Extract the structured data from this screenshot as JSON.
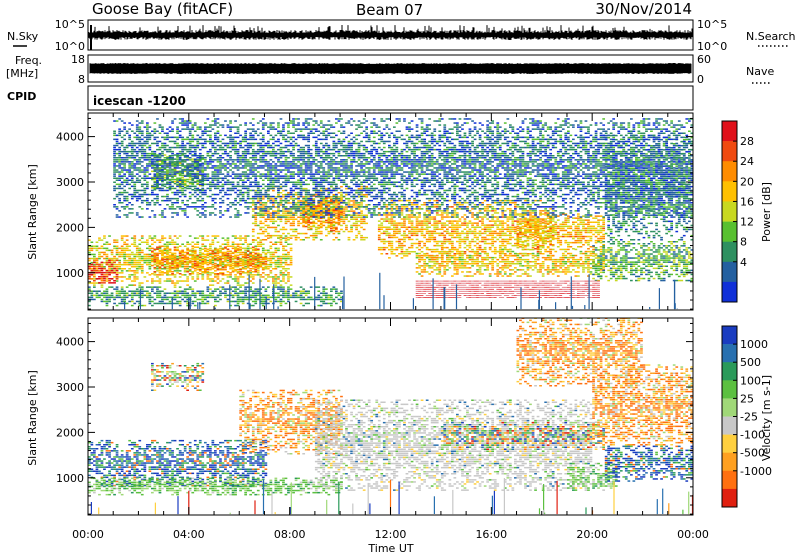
{
  "header": {
    "station": "Goose Bay (fitACF)",
    "beam": "Beam 07",
    "date": "30/Nov/2014"
  },
  "summary_panels": {
    "nsky": {
      "label": "N.Sky",
      "ticks": [
        "10^5",
        "10^0"
      ]
    },
    "nsearch": {
      "label": "N.Search",
      "ticks": [
        "10^5",
        "10^0"
      ]
    },
    "freq": {
      "label_line1": "Freq.",
      "label_line2": "[MHz]",
      "ticks": [
        "18",
        "8"
      ]
    },
    "nave": {
      "label": "Nave",
      "ticks": [
        "60",
        "0"
      ]
    },
    "cpid": {
      "label": "CPID",
      "value": "icescan -1200"
    }
  },
  "chart_data": [
    {
      "type": "heatmap",
      "name": "power",
      "ylabel": "Slant Range [km]",
      "xlabel": "",
      "x_ticks": [
        "00:00",
        "04:00",
        "08:00",
        "12:00",
        "16:00",
        "20:00",
        "00:00"
      ],
      "x_range_hours": [
        0,
        24
      ],
      "y_ticks": [
        1000,
        2000,
        3000,
        4000
      ],
      "ylim": [
        180,
        4520
      ],
      "colorbar": {
        "label": "Power [dB]",
        "ticks": [
          "28",
          "24",
          "20",
          "16",
          "12",
          "8",
          "4"
        ],
        "colors": [
          "#e0101a",
          "#f04a10",
          "#ff8c00",
          "#ffc000",
          "#c8d820",
          "#58c030",
          "#2e9060",
          "#2460a0",
          "#1030d8"
        ]
      },
      "regions": [
        {
          "t": [
            0,
            8
          ],
          "r": [
            700,
            1800
          ],
          "level": 0.55
        },
        {
          "t": [
            0,
            1.2
          ],
          "r": [
            750,
            1250
          ],
          "level": 0.9
        },
        {
          "t": [
            2.5,
            7
          ],
          "r": [
            950,
            1550
          ],
          "level": 0.7
        },
        {
          "t": [
            6.5,
            11
          ],
          "r": [
            1700,
            2900
          ],
          "level": 0.6
        },
        {
          "t": [
            8.5,
            10
          ],
          "r": [
            1900,
            2700
          ],
          "level": 0.7
        },
        {
          "t": [
            11.5,
            18.5
          ],
          "r": [
            1300,
            2600
          ],
          "level": 0.62
        },
        {
          "t": [
            13,
            20.5
          ],
          "r": [
            900,
            1500
          ],
          "level": 0.58
        },
        {
          "t": [
            17,
            20.5
          ],
          "r": [
            1500,
            2300
          ],
          "level": 0.62
        },
        {
          "t": [
            20,
            24
          ],
          "r": [
            800,
            1700
          ],
          "level": 0.35
        },
        {
          "t": [
            20.5,
            24
          ],
          "r": [
            1700,
            4000
          ],
          "level": 0.25
        },
        {
          "t": [
            0,
            10
          ],
          "r": [
            250,
            700
          ],
          "level": 0.3
        },
        {
          "t": [
            2.5,
            4.5
          ],
          "r": [
            2800,
            3600
          ],
          "level": 0.4
        },
        {
          "t": [
            1,
            24
          ],
          "r": [
            2200,
            4400
          ],
          "level": 0.2
        }
      ],
      "band": {
        "t": [
          13,
          20.3
        ],
        "r": [
          420,
          820
        ],
        "level": 0.97
      }
    },
    {
      "type": "heatmap",
      "name": "velocity",
      "ylabel": "Slant Range [km]",
      "xlabel": "Time UT",
      "x_ticks": [
        "00:00",
        "04:00",
        "08:00",
        "12:00",
        "16:00",
        "20:00",
        "00:00"
      ],
      "x_range_hours": [
        0,
        24
      ],
      "y_ticks": [
        1000,
        2000,
        3000,
        4000
      ],
      "ylim": [
        180,
        4520
      ],
      "colorbar": {
        "label": "Velocity [m s-1]",
        "ticks": [
          "1000",
          "500",
          "100",
          "25",
          "-25",
          "-100",
          "-500",
          "-1000"
        ],
        "colors": [
          "#1a3cc0",
          "#2870b0",
          "#2a9a5a",
          "#5cc040",
          "#a0d878",
          "#c8c8c8",
          "#ffd040",
          "#ffa020",
          "#ff7010",
          "#e02010"
        ]
      },
      "regions": [
        {
          "t": [
            0,
            7
          ],
          "r": [
            800,
            1800
          ],
          "scheme": "pos"
        },
        {
          "t": [
            0,
            10
          ],
          "r": [
            600,
            1000
          ],
          "scheme": "green"
        },
        {
          "t": [
            6,
            10
          ],
          "r": [
            1500,
            2900
          ],
          "scheme": "neg"
        },
        {
          "t": [
            9,
            20
          ],
          "r": [
            700,
            2700
          ],
          "scheme": "gray"
        },
        {
          "t": [
            14,
            20.5
          ],
          "r": [
            1600,
            2200
          ],
          "scheme": "mix"
        },
        {
          "t": [
            19,
            21
          ],
          "r": [
            700,
            1300
          ],
          "scheme": "green"
        },
        {
          "t": [
            20.5,
            24
          ],
          "r": [
            900,
            1700
          ],
          "scheme": "pos"
        },
        {
          "t": [
            20,
            24
          ],
          "r": [
            1700,
            3500
          ],
          "scheme": "neg"
        },
        {
          "t": [
            2.5,
            4.5
          ],
          "r": [
            2900,
            3500
          ],
          "scheme": "mix"
        },
        {
          "t": [
            17,
            22
          ],
          "r": [
            3000,
            4500
          ],
          "scheme": "neg"
        }
      ]
    }
  ]
}
